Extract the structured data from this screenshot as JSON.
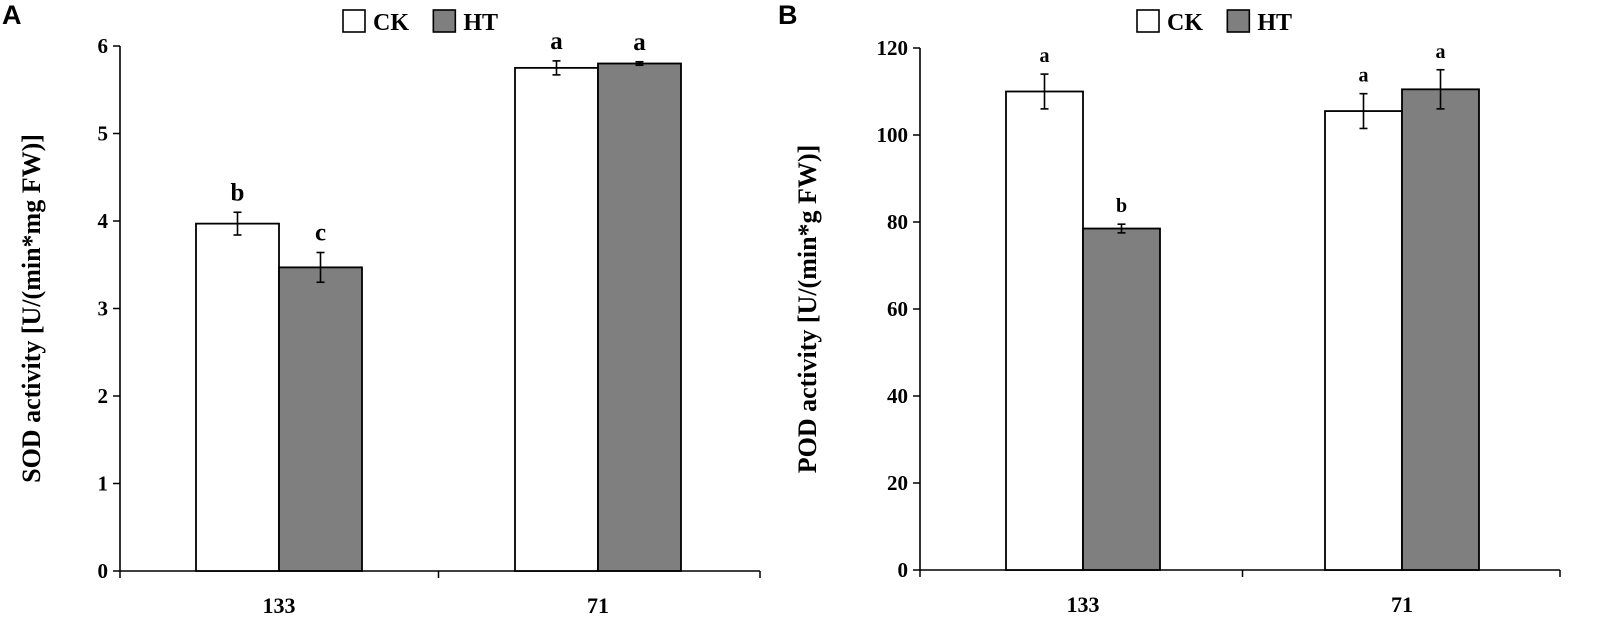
{
  "colors": {
    "CK": "#ffffff",
    "HT": "#7f7f7f",
    "axis": "#000000"
  },
  "chart_data": [
    {
      "type": "bar",
      "panel": "A",
      "categories": [
        "133",
        "71"
      ],
      "ylabel": "SOD activity [U/(min*mg FW)]",
      "ylim": [
        0,
        6
      ],
      "yticks": [
        0,
        1,
        2,
        3,
        4,
        5,
        6
      ],
      "grid": false,
      "legend_position": "top-center",
      "series": [
        {
          "name": "CK",
          "values": [
            3.97,
            5.75
          ],
          "errors": [
            0.13,
            0.08
          ],
          "labels": [
            "b",
            "a"
          ]
        },
        {
          "name": "HT",
          "values": [
            3.47,
            5.8
          ],
          "errors": [
            0.17,
            0.02
          ],
          "labels": [
            "c",
            "a"
          ]
        }
      ]
    },
    {
      "type": "bar",
      "panel": "B",
      "categories": [
        "133",
        "71"
      ],
      "ylabel": "POD activity [U/(min*g FW)]",
      "ylim": [
        0,
        120
      ],
      "yticks": [
        0,
        20,
        40,
        60,
        80,
        100,
        120
      ],
      "grid": false,
      "legend_position": "top-center",
      "series": [
        {
          "name": "CK",
          "values": [
            110.0,
            105.5
          ],
          "errors": [
            4.0,
            4.0
          ],
          "labels": [
            "a",
            "a"
          ]
        },
        {
          "name": "HT",
          "values": [
            78.5,
            110.5
          ],
          "errors": [
            1.0,
            4.5
          ],
          "labels": [
            "b",
            "a"
          ]
        }
      ]
    }
  ]
}
